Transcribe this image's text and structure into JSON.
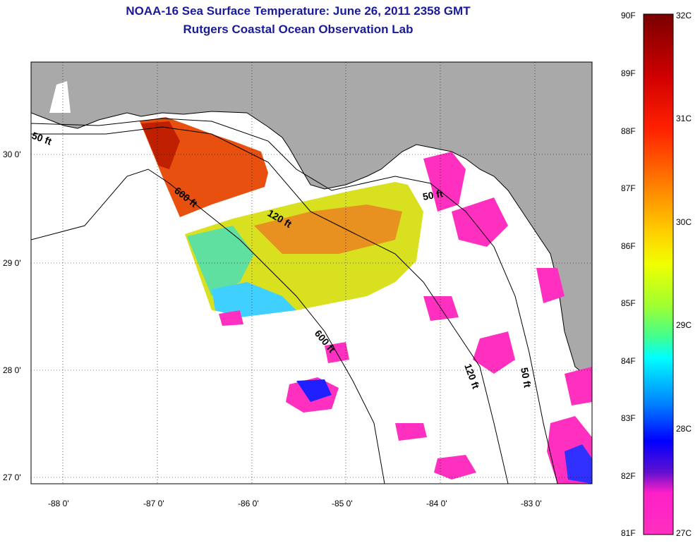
{
  "title": {
    "line1": "NOAA-16 Sea Surface Temperature:  June 26, 2011 2358 GMT",
    "line2": "Rutgers Coastal Ocean Observation Lab"
  },
  "axes": {
    "x_ticks": [
      "-88 0'",
      "-87 0'",
      "-86 0'",
      "-85 0'",
      "-84 0'",
      "-83 0'"
    ],
    "y_ticks": [
      "30 0'",
      "29 0'",
      "28 0'",
      "27 0'"
    ]
  },
  "depth_labels": [
    "50 ft",
    "600 ft",
    "120 ft",
    "50 ft",
    "600 ft",
    "120 ft",
    "50 ft"
  ],
  "colorbar": {
    "fahrenheit_labels": [
      "90F",
      "89F",
      "88F",
      "87F",
      "86F",
      "85F",
      "84F",
      "83F",
      "82F",
      "81F"
    ],
    "celsius_labels": [
      "32C",
      "31C",
      "30C",
      "29C",
      "28C",
      "27C"
    ],
    "colors": [
      "#7a0000",
      "#d00000",
      "#ff3000",
      "#ff8000",
      "#ffd000",
      "#f0ff00",
      "#a0ff20",
      "#40ffa0",
      "#00ffff",
      "#0080ff",
      "#0000ff",
      "#8000c0",
      "#ff20c0",
      "#ff40c0"
    ]
  },
  "colors": {
    "land": "#a9a9a9",
    "water": "#ffffff",
    "title": "#1a1a9a"
  }
}
